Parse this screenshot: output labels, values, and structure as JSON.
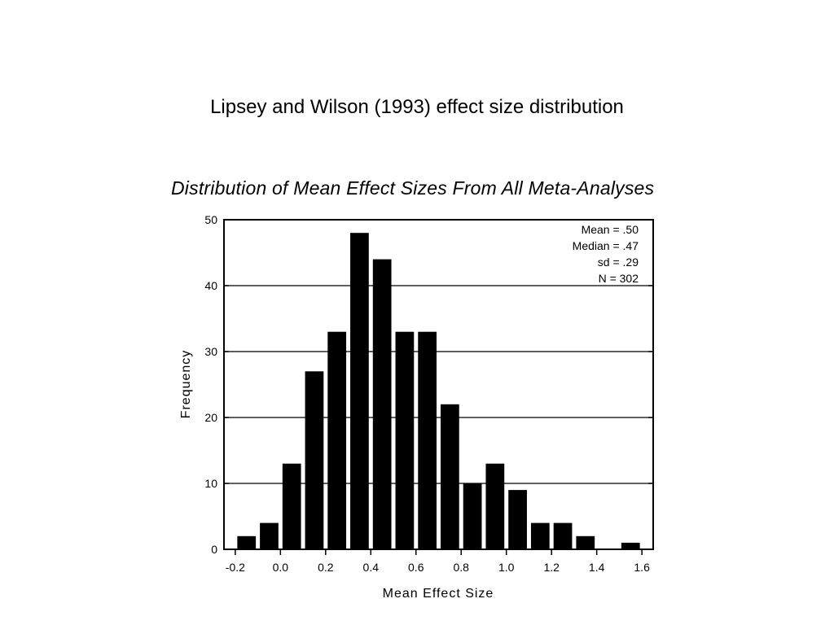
{
  "slide": {
    "title": "Lipsey and Wilson (1993) effect size distribution"
  },
  "chart_data": {
    "type": "bar",
    "title": "Distribution of Mean Effect Sizes From All Meta-Analyses",
    "xlabel": "Mean Effect Size",
    "ylabel": "Frequency",
    "xlim": [
      -0.25,
      1.65
    ],
    "ylim": [
      0,
      50
    ],
    "xticks": [
      "-0.2",
      "0.0",
      "0.2",
      "0.4",
      "0.6",
      "0.8",
      "1.0",
      "1.2",
      "1.4",
      "1.6"
    ],
    "xtick_values": [
      -0.2,
      0.0,
      0.2,
      0.4,
      0.6,
      0.8,
      1.0,
      1.2,
      1.4,
      1.6
    ],
    "yticks": [
      "0",
      "10",
      "20",
      "30",
      "40",
      "50"
    ],
    "ytick_values": [
      0,
      10,
      20,
      30,
      40,
      50
    ],
    "grid": "horizontal",
    "bin_width": 0.1,
    "bin_centers": [
      -0.15,
      -0.05,
      0.05,
      0.15,
      0.25,
      0.35,
      0.45,
      0.55,
      0.65,
      0.75,
      0.85,
      0.95,
      1.05,
      1.15,
      1.25,
      1.35,
      1.45,
      1.55
    ],
    "values": [
      2,
      4,
      13,
      27,
      33,
      48,
      44,
      33,
      33,
      22,
      10,
      13,
      9,
      4,
      4,
      2,
      0,
      1
    ],
    "annotation": [
      "Mean = .50",
      "Median = .47",
      "sd = .29",
      "N = 302"
    ],
    "annotation_placement": "top-right"
  }
}
